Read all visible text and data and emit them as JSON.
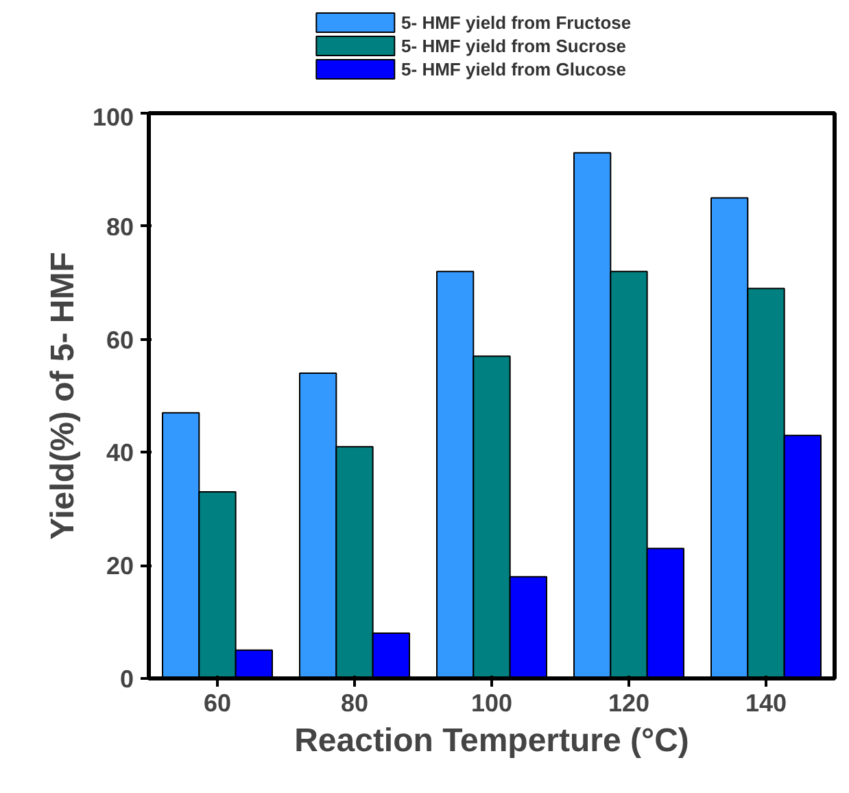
{
  "chart_data": {
    "type": "bar",
    "xlabel": "Reaction Temperture (°C)",
    "ylabel": "Yield(%) of 5- HMF",
    "categories": [
      "60",
      "80",
      "100",
      "120",
      "140"
    ],
    "series": [
      {
        "name": "5- HMF yield from Fructose",
        "color": "#3399ff",
        "values": [
          47,
          54,
          72,
          93,
          85
        ]
      },
      {
        "name": "5- HMF yield from Sucrose",
        "color": "#008080",
        "values": [
          33,
          41,
          57,
          72,
          69
        ]
      },
      {
        "name": "5- HMF yield from Glucose",
        "color": "#0000ff",
        "values": [
          5,
          8,
          18,
          23,
          43
        ]
      }
    ],
    "ylim": [
      0,
      100
    ],
    "yticks": [
      0,
      20,
      40,
      60,
      80,
      100
    ],
    "grid": false,
    "legend": "top left"
  }
}
